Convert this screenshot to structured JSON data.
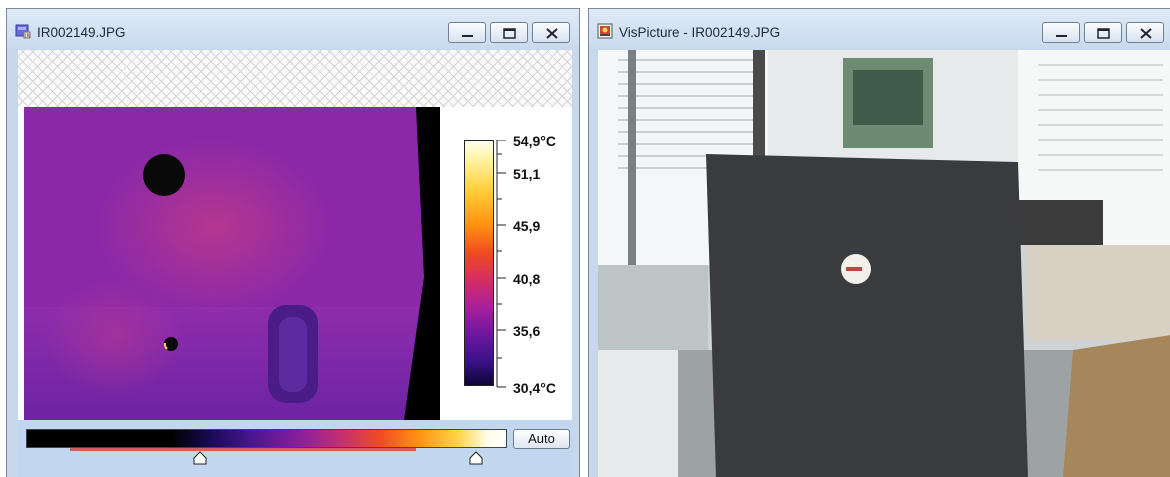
{
  "ir_window": {
    "title": "IR002149.JPG",
    "icon": "ir-image-icon",
    "controls": [
      "minimize-icon",
      "maximize-icon",
      "close-icon"
    ],
    "temperature_scale": {
      "max": "54,9°C",
      "labels": [
        "51,1",
        "45,9",
        "40,8",
        "35,6"
      ],
      "min": "30,4°C"
    },
    "palette": {
      "auto_label": "Auto",
      "range_low": 0.38,
      "range_high": 0.92
    }
  },
  "vis_window": {
    "title": "VisPicture - IR002149.JPG",
    "icon": "photo-icon",
    "controls": [
      "minimize-icon",
      "maximize-icon",
      "close-icon"
    ]
  },
  "colors": {
    "window_frame": "#c7d8ec",
    "palette_panel": "#c2d6ef",
    "thermal_background": "#8a28a8",
    "range_line": "#d06060"
  }
}
